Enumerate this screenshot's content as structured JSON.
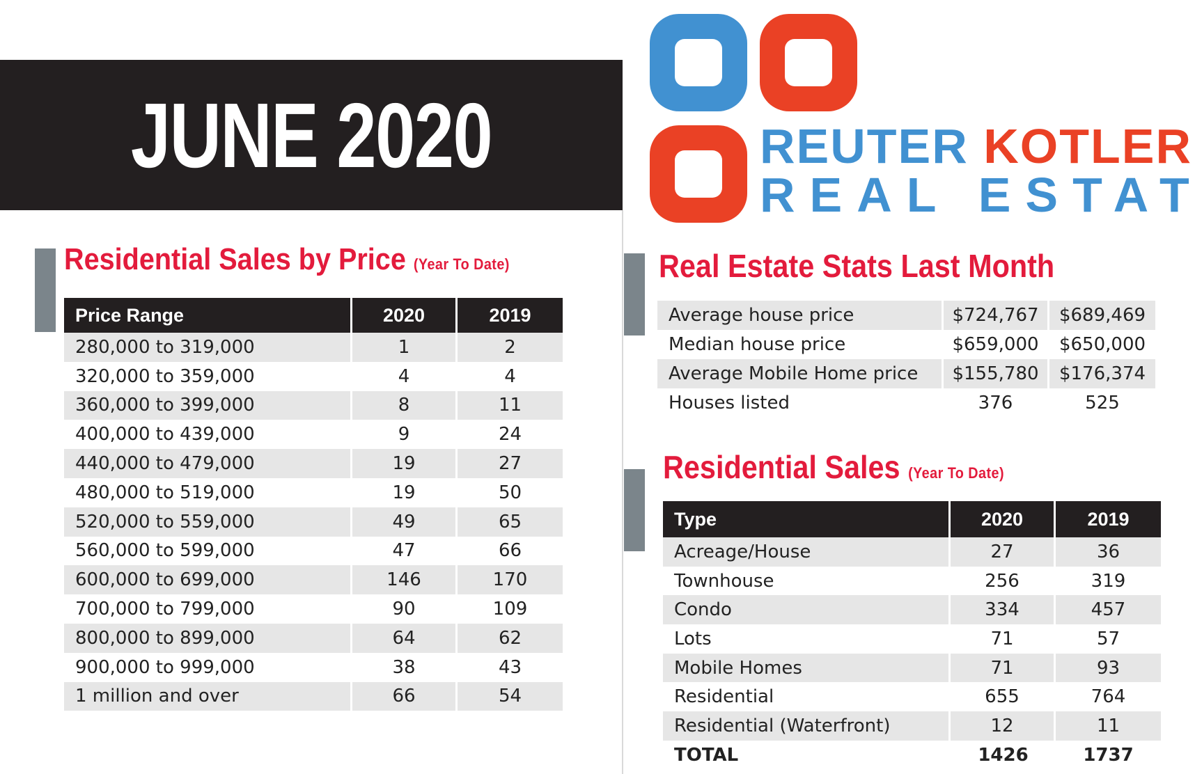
{
  "banner": {
    "title": "JUNE 2020"
  },
  "logo": {
    "line1_a": "REUTER",
    "line1_b": "KOTLER",
    "line2": "REAL ESTATE",
    "colors": {
      "blue": "#4191d1",
      "red": "#ea4125"
    }
  },
  "price_section": {
    "title": "Residential Sales by Price",
    "subtitle": "(Year To Date)",
    "headers": [
      "Price Range",
      "2020",
      "2019"
    ],
    "rows": [
      [
        "280,000 to 319,000",
        "1",
        "2"
      ],
      [
        "320,000 to 359,000",
        "4",
        "4"
      ],
      [
        "360,000 to 399,000",
        "8",
        "11"
      ],
      [
        "400,000 to 439,000",
        "9",
        "24"
      ],
      [
        "440,000 to 479,000",
        "19",
        "27"
      ],
      [
        "480,000 to 519,000",
        "19",
        "50"
      ],
      [
        "520,000 to 559,000",
        "49",
        "65"
      ],
      [
        "560,000 to 599,000",
        "47",
        "66"
      ],
      [
        "600,000 to 699,000",
        "146",
        "170"
      ],
      [
        "700,000 to 799,000",
        "90",
        "109"
      ],
      [
        "800,000 to 899,000",
        "64",
        "62"
      ],
      [
        "900,000 to 999,000",
        "38",
        "43"
      ],
      [
        "1 million and over",
        "66",
        "54"
      ]
    ]
  },
  "stats_section": {
    "title": "Real Estate Stats Last Month",
    "rows": [
      [
        "Average house price",
        "$724,767",
        "$689,469"
      ],
      [
        "Median house price",
        "$659,000",
        "$650,000"
      ],
      [
        "Average Mobile Home price",
        "$155,780",
        "$176,374"
      ],
      [
        "Houses listed",
        "376",
        "525"
      ]
    ]
  },
  "type_section": {
    "title": "Residential Sales",
    "subtitle": "(Year To Date)",
    "headers": [
      "Type",
      "2020",
      "2019"
    ],
    "rows": [
      [
        "Acreage/House",
        "27",
        "36"
      ],
      [
        "Townhouse",
        "256",
        "319"
      ],
      [
        "Condo",
        "334",
        "457"
      ],
      [
        "Lots",
        "71",
        "57"
      ],
      [
        "Mobile Homes",
        "71",
        "93"
      ],
      [
        "Residential",
        "655",
        "764"
      ],
      [
        "Residential (Waterfront)",
        "12",
        "11"
      ]
    ],
    "total": [
      "TOTAL",
      "1426",
      "1737"
    ]
  }
}
